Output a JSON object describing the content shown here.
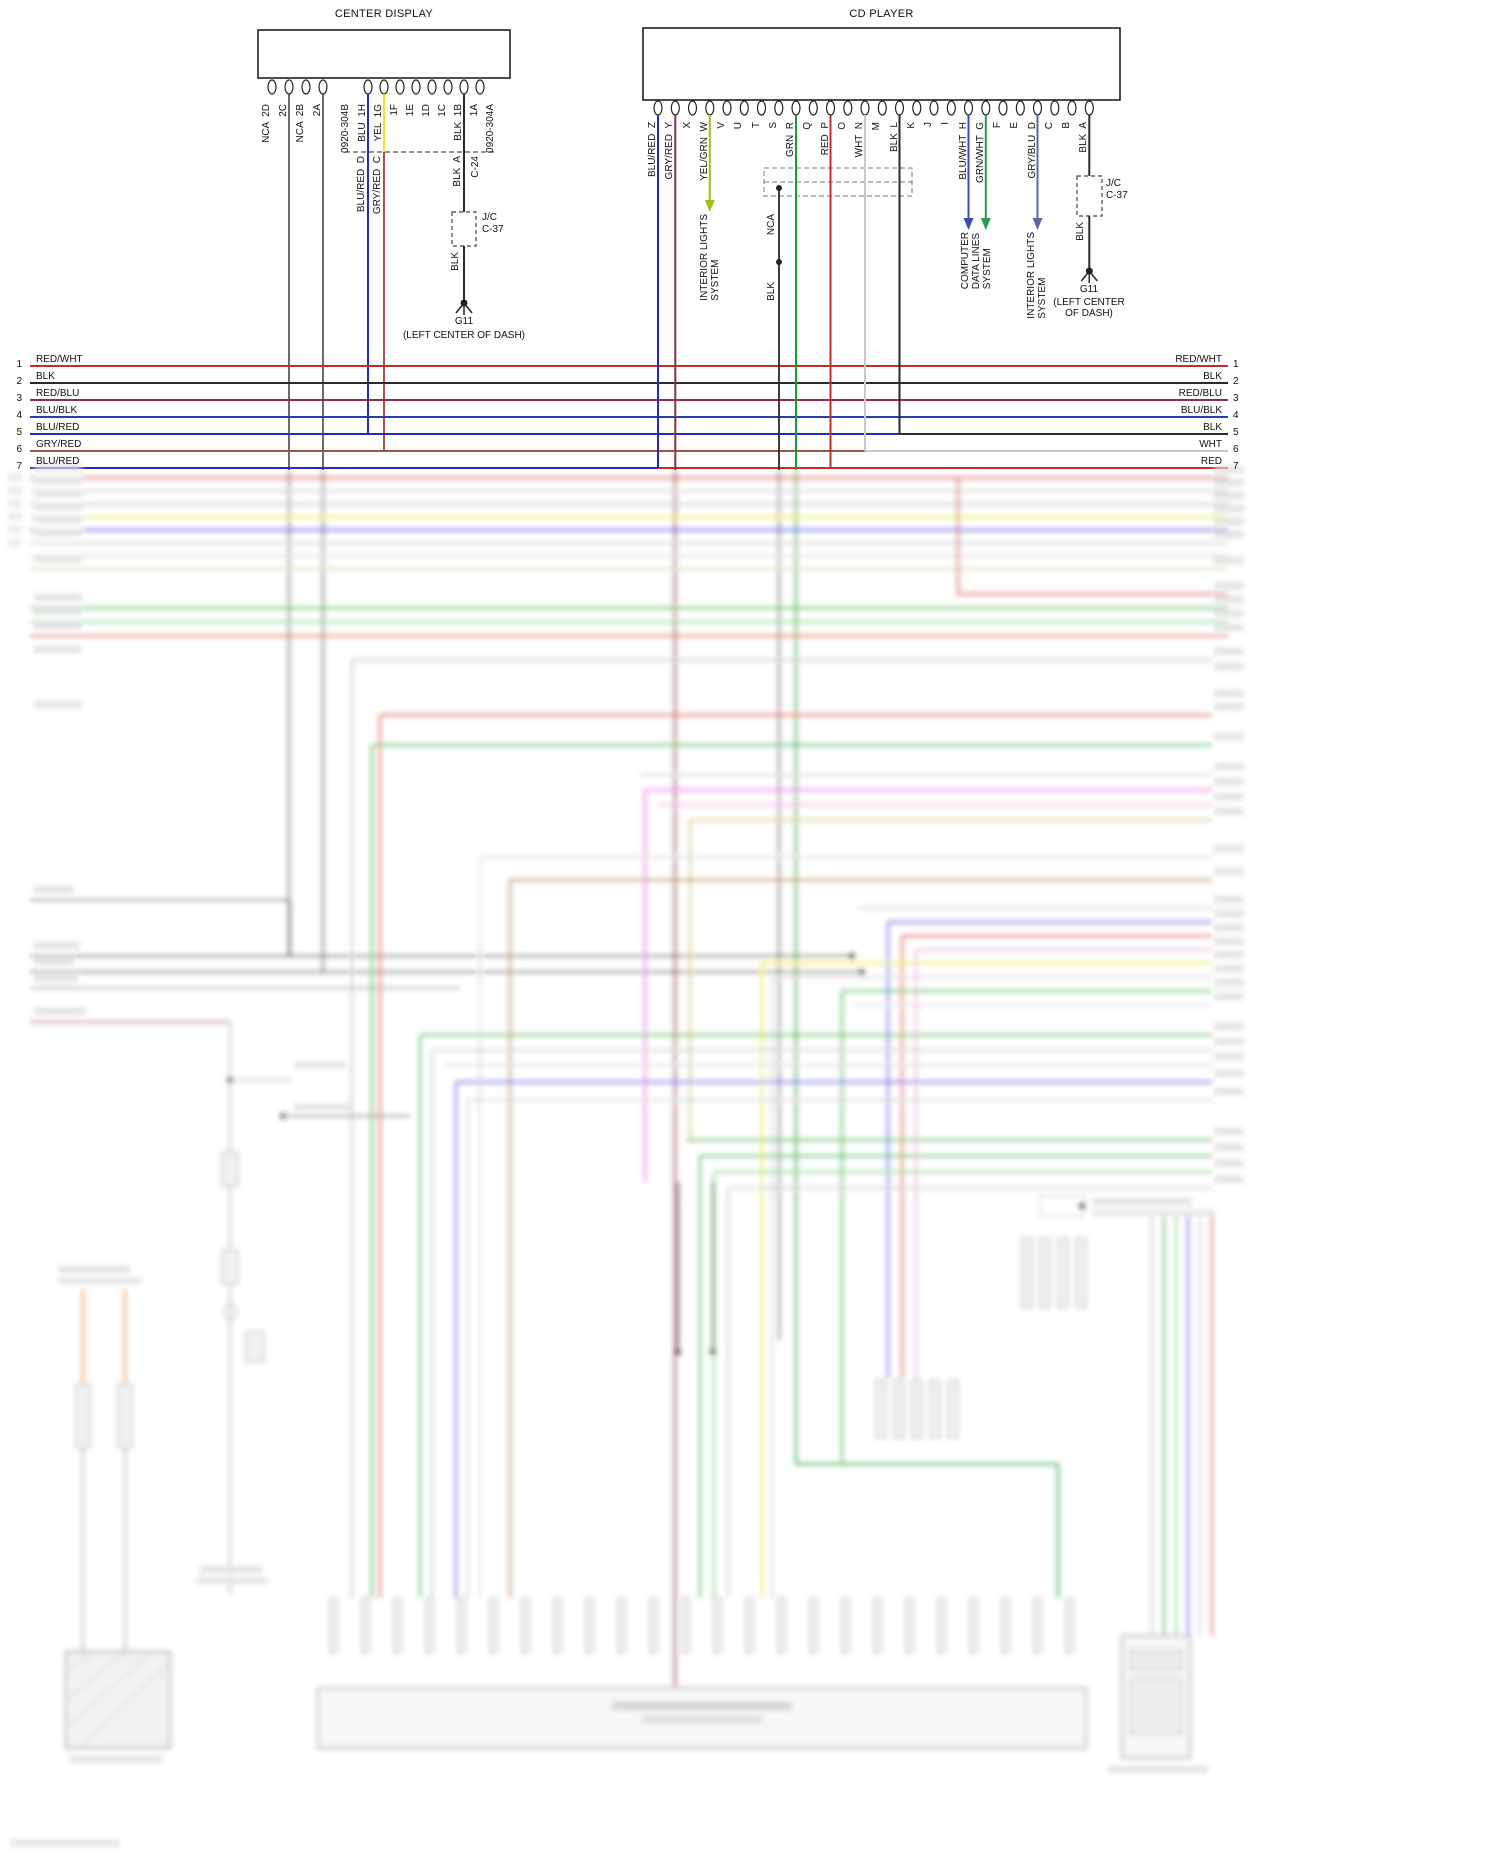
{
  "center_display": {
    "title": "CENTER DISPLAY",
    "connector_b": "0920-304B",
    "connector_a": "0920-304A",
    "pins_2": [
      "NCA  2D",
      "2C",
      "NCA  2B",
      "2A"
    ],
    "pins_1": [
      "BLU  1H",
      "YEL  1G",
      "1F",
      "1E",
      "1D",
      "1C",
      "BLK  1B",
      "1A"
    ],
    "c24": {
      "pin_d": "BLU/RED  D",
      "pin_c": "GRY/RED  C",
      "pin_a": "BLK  A",
      "label": "C-24"
    },
    "jc": {
      "line1": "J/C",
      "line2": "C-37",
      "wire": "BLK"
    },
    "ground": {
      "id": "G11",
      "loc": "(LEFT CENTER OF DASH)"
    }
  },
  "cd_player": {
    "title": "CD PLAYER",
    "pins": [
      "BLU/RED  Z",
      "GRY/RED  Y",
      "X",
      "YEL/GRN  W",
      "V",
      "U",
      "T",
      "S",
      "GRN  R",
      "Q",
      "RED  P",
      "O",
      "WHT  N",
      "M",
      "BLK  L",
      "K",
      "J",
      "I",
      "BLU/WHT  H",
      "GRN/WHT  G",
      "F",
      "E",
      "GRY/BLU  D",
      "C",
      "B",
      "BLK  A"
    ],
    "dest_interior1": "INTERIOR LIGHTS\nSYSTEM",
    "shield": {
      "nca": "NCA",
      "blk": "BLK"
    },
    "dest_computer": "COMPUTER\nDATA LINES\nSYSTEM",
    "dest_interior2": "INTERIOR LIGHTS\nSYSTEM",
    "jc": {
      "line1": "J/C",
      "line2": "C-37",
      "wire": "BLK"
    },
    "ground": {
      "id": "G11",
      "loc": "(LEFT CENTER\nOF DASH)"
    }
  },
  "rows_meta": {
    "numbers": [
      "1",
      "2",
      "3",
      "4",
      "5",
      "6",
      "7"
    ],
    "left": [
      "RED/WHT",
      "BLK",
      "RED/BLU",
      "BLU/BLK",
      "BLU/RED",
      "GRY/RED",
      "BLU/RED"
    ],
    "right": [
      "RED/WHT",
      "BLK",
      "RED/BLU",
      "BLU/BLK",
      "BLK",
      "WHT",
      "RED"
    ]
  },
  "palette": {
    "red": "#c03028",
    "black": "#2a2a2a",
    "red_blu": "#8b3040",
    "blu_blk": "#2a3bb0",
    "blu_red": "#2a2ab8",
    "gry_red": "#a05050",
    "wht": "#c8c8c8",
    "yel": "#e6e630",
    "grn": "#1a9a30",
    "yel_grn": "#9ac410",
    "blu_wht": "#3a4ab8",
    "grn_wht": "#2a9a50",
    "gry_blu": "#5a6a9a"
  }
}
